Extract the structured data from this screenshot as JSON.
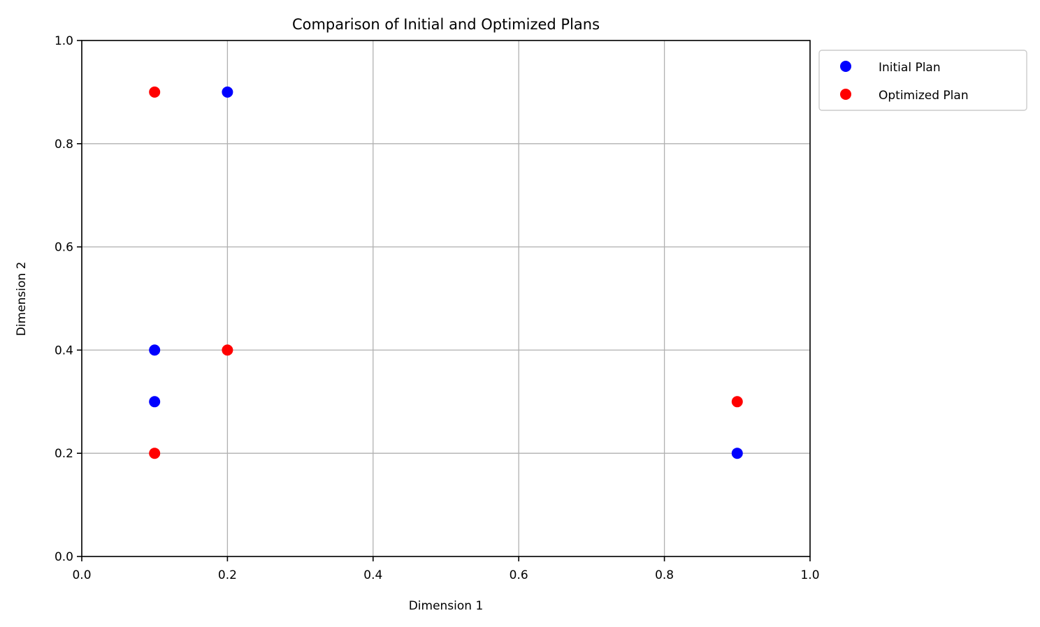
{
  "chart_data": {
    "type": "scatter",
    "title": "Comparison of Initial and Optimized Plans",
    "xlabel": "Dimension 1",
    "ylabel": "Dimension 2",
    "xlim": [
      0,
      1
    ],
    "ylim": [
      0,
      1
    ],
    "xticks": [
      0.0,
      0.2,
      0.4,
      0.6,
      0.8,
      1.0
    ],
    "yticks": [
      0.0,
      0.2,
      0.4,
      0.6,
      0.8,
      1.0
    ],
    "xtick_labels": [
      "0.0",
      "0.2",
      "0.4",
      "0.6",
      "0.8",
      "1.0"
    ],
    "ytick_labels": [
      "0.0",
      "0.2",
      "0.4",
      "0.6",
      "0.8",
      "1.0"
    ],
    "grid": true,
    "legend_position": "outside top-right",
    "series": [
      {
        "name": "Initial Plan",
        "color": "#0000ff",
        "points": [
          {
            "x": 0.2,
            "y": 0.9
          },
          {
            "x": 0.1,
            "y": 0.4
          },
          {
            "x": 0.1,
            "y": 0.3
          },
          {
            "x": 0.9,
            "y": 0.2
          }
        ]
      },
      {
        "name": "Optimized Plan",
        "color": "#ff0000",
        "points": [
          {
            "x": 0.1,
            "y": 0.9
          },
          {
            "x": 0.2,
            "y": 0.4
          },
          {
            "x": 0.1,
            "y": 0.2
          },
          {
            "x": 0.9,
            "y": 0.3
          }
        ]
      }
    ]
  }
}
